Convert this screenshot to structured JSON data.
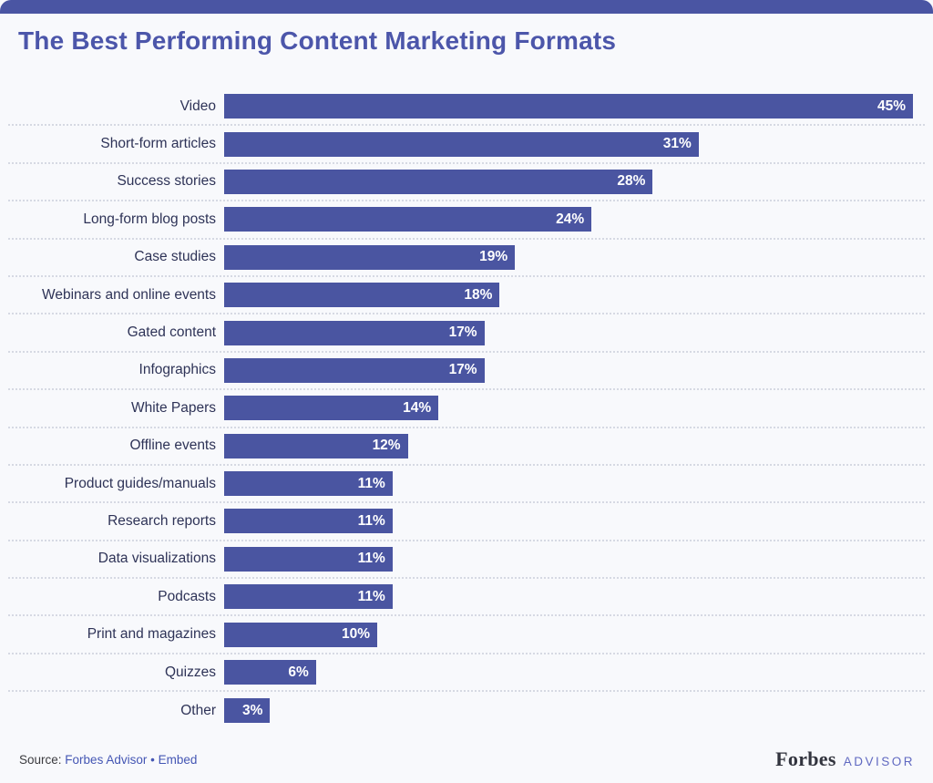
{
  "page": {
    "background_color": "#f8f9fc",
    "accent_color": "#4a55a3"
  },
  "chart_data": {
    "type": "bar",
    "orientation": "horizontal",
    "title": "The Best Performing Content Marketing Formats",
    "categories": [
      "Video",
      "Short-form articles",
      "Success stories",
      "Long-form blog posts",
      "Case studies",
      "Webinars and online events",
      "Gated content",
      "Infographics",
      "White Papers",
      "Offline events",
      "Product guides/manuals",
      "Research reports",
      "Data visualizations",
      "Podcasts",
      "Print and magazines",
      "Quizzes",
      "Other"
    ],
    "values": [
      45,
      31,
      28,
      24,
      19,
      18,
      17,
      17,
      14,
      12,
      11,
      11,
      11,
      11,
      10,
      6,
      3
    ],
    "value_suffix": "%",
    "xlim": [
      0,
      45
    ],
    "bar_color": "#4a55a1",
    "category_label_color": "#2e3357",
    "value_label_color": "#ffffff",
    "grid": "dotted horizontal row separators",
    "value_labels_position": "inside-end"
  },
  "footer": {
    "source_prefix": "Source:",
    "source_link_1": "Forbes Advisor",
    "separator": "•",
    "source_link_2": "Embed",
    "brand_name": "Forbes",
    "brand_suffix": "ADVISOR"
  }
}
